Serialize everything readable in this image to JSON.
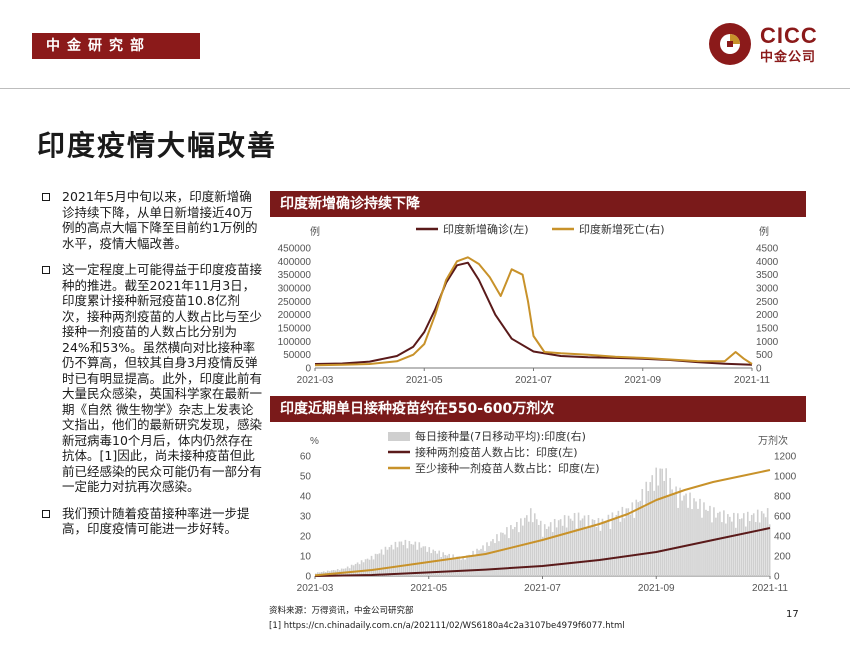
{
  "header": {
    "tag": "中金研究部"
  },
  "logo": {
    "en": "CICC",
    "cn": "中金公司"
  },
  "title": "印度疫情大幅改善",
  "bullets": [
    "2021年5月中旬以来，印度新增确诊持续下降，从单日新增接近40万例的高点大幅下降至目前约1万例的水平，疫情大幅改善。",
    "这一定程度上可能得益于印度疫苗接种的推进。截至2021年11月3日，印度累计接种新冠疫苗10.8亿剂次，接种两剂疫苗的人数占比与至少接种一剂疫苗的人数占比分别为24%和53%。虽然横向对比接种率仍不算高，但较其自身3月疫情反弹时已有明显提高。此外，印度此前有大量民众感染，英国科学家在最新一期《自然 微生物学》杂志上发表论文指出，他们的最新研究发现，感染新冠病毒10个月后，体内仍然存在抗体。[1]因此，尚未接种疫苗但此前已经感染的民众可能仍有一部分有一定能力对抗再次感染。",
    "我们预计随着疫苗接种率进一步提高，印度疫情可能进一步好转。"
  ],
  "panels": {
    "top_title": "印度新增确诊持续下降",
    "bottom_title": "印度近期单日接种疫苗约在550-600万剂次"
  },
  "source": "资料来源：万得资讯，中金公司研究部",
  "footnote": "[1] https://cn.chinadaily.com.cn/a/202111/02/WS6180a4c2a3107be4979f6077.html",
  "page_number": "17",
  "colors": {
    "brand": "#8b1a1a",
    "dark_line": "#5a1a1a",
    "gold_line": "#c8922a",
    "bar": "#cfcfcf"
  },
  "chart_data": [
    {
      "type": "line",
      "title": "印度新增确诊持续下降",
      "x_ticks": [
        "2021-03",
        "2021-05",
        "2021-07",
        "2021-09",
        "2021-11"
      ],
      "y_left_label": "例",
      "y_right_label": "例",
      "y_left_ticks": [
        "0",
        "50000",
        "100000",
        "150000",
        "200000",
        "250000",
        "300000",
        "350000",
        "400000",
        "450000"
      ],
      "y_right_ticks": [
        "0",
        "500",
        "1000",
        "1500",
        "2000",
        "2500",
        "3000",
        "3500",
        "4000",
        "4500"
      ],
      "ylim_left": [
        0,
        450000
      ],
      "ylim_right": [
        0,
        4500
      ],
      "x_months_range": [
        0,
        8
      ],
      "series": [
        {
          "name": "印度新增确诊(左)",
          "axis": "left",
          "color": "#5a1a1a",
          "x": [
            0,
            0.5,
            1,
            1.5,
            1.8,
            2.0,
            2.2,
            2.4,
            2.6,
            2.8,
            3.0,
            3.3,
            3.6,
            4.0,
            4.5,
            5,
            5.5,
            6,
            6.5,
            7,
            7.5,
            8
          ],
          "values": [
            15000,
            17000,
            24000,
            45000,
            80000,
            135000,
            220000,
            320000,
            385000,
            395000,
            330000,
            200000,
            110000,
            62000,
            45000,
            40000,
            38000,
            35000,
            30000,
            22000,
            16000,
            12000
          ]
        },
        {
          "name": "印度新增死亡(右)",
          "axis": "right",
          "color": "#c8922a",
          "x": [
            0,
            0.5,
            1,
            1.5,
            1.8,
            2.0,
            2.2,
            2.4,
            2.6,
            2.8,
            3.0,
            3.2,
            3.4,
            3.6,
            3.8,
            3.9,
            4.0,
            4.2,
            4.5,
            5,
            5.5,
            6,
            6.5,
            7,
            7.5,
            7.7,
            7.85,
            8
          ],
          "values": [
            100,
            120,
            150,
            250,
            500,
            900,
            2000,
            3300,
            4000,
            4150,
            3900,
            3400,
            2700,
            3700,
            3500,
            2500,
            1200,
            600,
            550,
            500,
            420,
            380,
            320,
            260,
            250,
            600,
            350,
            150
          ]
        }
      ]
    },
    {
      "type": "bar+line",
      "title": "印度近期单日接种疫苗约在550-600万剂次",
      "x_ticks": [
        "2021-03",
        "2021-05",
        "2021-07",
        "2021-09",
        "2021-11"
      ],
      "y_left_label": "%",
      "y_right_label": "万剂次",
      "y_left_ticks": [
        "0",
        "10",
        "20",
        "30",
        "40",
        "50",
        "60"
      ],
      "y_right_ticks": [
        "0",
        "200",
        "400",
        "600",
        "800",
        "1000",
        "1200"
      ],
      "ylim_left": [
        0,
        60
      ],
      "ylim_right": [
        0,
        1200
      ],
      "x_months_range": [
        0,
        8
      ],
      "series": [
        {
          "name": "每日接种量(7日移动平均):印度(右)",
          "axis": "right",
          "kind": "bar",
          "color": "#cfcfcf",
          "x": [
            0,
            0.5,
            1,
            1.2,
            1.5,
            1.8,
            2,
            2.3,
            2.6,
            3,
            3.3,
            3.6,
            3.8,
            4,
            4.3,
            4.6,
            5,
            5.3,
            5.6,
            5.9,
            6.1,
            6.3,
            6.6,
            7,
            7.3,
            7.6,
            8
          ],
          "values": [
            30,
            70,
            180,
            250,
            320,
            300,
            250,
            200,
            170,
            290,
            410,
            500,
            600,
            450,
            520,
            560,
            500,
            580,
            650,
            900,
            1000,
            800,
            720,
            600,
            550,
            560,
            600
          ]
        },
        {
          "name": "接种两剂疫苗人数占比：印度(左)",
          "axis": "left",
          "kind": "line",
          "color": "#5a1a1a",
          "x": [
            0,
            1,
            2,
            3,
            4,
            5,
            6,
            7,
            8
          ],
          "values": [
            0,
            0.5,
            1.8,
            3.2,
            5,
            8,
            12,
            18,
            24
          ]
        },
        {
          "name": "至少接种一剂疫苗人数占比：印度(左)",
          "axis": "left",
          "kind": "line",
          "color": "#c8922a",
          "x": [
            0,
            1,
            2,
            3,
            4,
            5,
            5.5,
            6,
            6.5,
            7,
            7.5,
            8
          ],
          "values": [
            0.3,
            3,
            7,
            11,
            18,
            26,
            31,
            38,
            43,
            47,
            50,
            53
          ]
        }
      ]
    }
  ]
}
